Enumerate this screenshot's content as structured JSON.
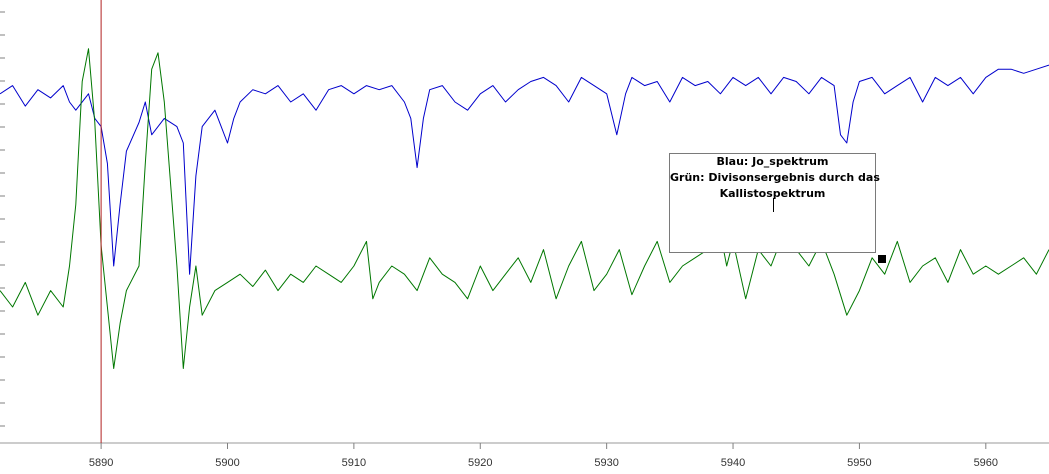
{
  "chart_data": {
    "type": "line",
    "x_ticks": [
      5890,
      5900,
      5910,
      5920,
      5930,
      5940,
      5950,
      5960
    ],
    "xlim": [
      5882,
      5965
    ],
    "ylim": [
      0,
      1
    ],
    "cursor_x": 5890,
    "series": [
      {
        "color": "#0000cc",
        "x": [
          5882,
          5883,
          5884,
          5885,
          5886,
          5887,
          5887.5,
          5888,
          5889,
          5889.5,
          5890,
          5890.5,
          5891,
          5891.5,
          5892,
          5893,
          5893.5,
          5894,
          5895,
          5896,
          5896.5,
          5897,
          5897.5,
          5898,
          5899,
          5900,
          5900.5,
          5901,
          5902,
          5903,
          5904,
          5905,
          5906,
          5907,
          5908,
          5909,
          5910,
          5911,
          5912,
          5913,
          5914,
          5914.5,
          5915,
          5915.5,
          5916,
          5917,
          5918,
          5919,
          5920,
          5921,
          5922,
          5923,
          5924,
          5925,
          5926,
          5927,
          5928,
          5929,
          5930,
          5930.8,
          5931.5,
          5932,
          5933,
          5934,
          5935,
          5936,
          5937,
          5938,
          5939,
          5940,
          5941,
          5942,
          5943,
          5944,
          5945,
          5946,
          5947,
          5948,
          5948.5,
          5949,
          5949.5,
          5950,
          5951,
          5952,
          5953,
          5954,
          5955,
          5956,
          5957,
          5958,
          5959,
          5960,
          5961,
          5962,
          5963,
          5964,
          5965
        ],
        "y": [
          0.82,
          0.84,
          0.79,
          0.83,
          0.81,
          0.84,
          0.8,
          0.78,
          0.82,
          0.76,
          0.74,
          0.65,
          0.4,
          0.55,
          0.68,
          0.75,
          0.8,
          0.72,
          0.76,
          0.74,
          0.7,
          0.38,
          0.62,
          0.74,
          0.78,
          0.7,
          0.76,
          0.8,
          0.83,
          0.82,
          0.84,
          0.8,
          0.82,
          0.78,
          0.83,
          0.84,
          0.82,
          0.84,
          0.83,
          0.84,
          0.8,
          0.76,
          0.64,
          0.76,
          0.83,
          0.84,
          0.8,
          0.78,
          0.82,
          0.84,
          0.8,
          0.83,
          0.85,
          0.86,
          0.84,
          0.8,
          0.86,
          0.84,
          0.82,
          0.72,
          0.82,
          0.86,
          0.84,
          0.85,
          0.8,
          0.86,
          0.84,
          0.85,
          0.82,
          0.86,
          0.84,
          0.86,
          0.82,
          0.86,
          0.85,
          0.82,
          0.86,
          0.84,
          0.72,
          0.7,
          0.8,
          0.85,
          0.86,
          0.82,
          0.84,
          0.86,
          0.8,
          0.86,
          0.84,
          0.86,
          0.82,
          0.86,
          0.88,
          0.88,
          0.87,
          0.88,
          0.89
        ]
      },
      {
        "color": "#007700",
        "x": [
          5882,
          5883,
          5884,
          5885,
          5886,
          5887,
          5887.5,
          5888,
          5888.5,
          5889,
          5889.5,
          5890,
          5890.5,
          5891,
          5891.5,
          5892,
          5893,
          5893.5,
          5894,
          5894.5,
          5895,
          5896,
          5896.5,
          5897,
          5897.5,
          5898,
          5899,
          5900,
          5901,
          5902,
          5903,
          5904,
          5905,
          5906,
          5907,
          5908,
          5909,
          5910,
          5911,
          5911.5,
          5912,
          5913,
          5914,
          5915,
          5916,
          5917,
          5918,
          5919,
          5920,
          5921,
          5922,
          5923,
          5924,
          5925,
          5926,
          5927,
          5928,
          5929,
          5930,
          5931,
          5932,
          5933,
          5934,
          5935,
          5936,
          5937,
          5938,
          5939,
          5939.5,
          5940,
          5941,
          5942,
          5943,
          5944,
          5945,
          5946,
          5947,
          5948,
          5949,
          5950,
          5951,
          5952,
          5953,
          5954,
          5955,
          5956,
          5957,
          5958,
          5959,
          5960,
          5961,
          5962,
          5963,
          5964,
          5965
        ],
        "y": [
          0.34,
          0.3,
          0.36,
          0.28,
          0.34,
          0.3,
          0.4,
          0.55,
          0.85,
          0.93,
          0.75,
          0.45,
          0.3,
          0.15,
          0.26,
          0.34,
          0.4,
          0.65,
          0.88,
          0.92,
          0.8,
          0.4,
          0.15,
          0.3,
          0.4,
          0.28,
          0.34,
          0.36,
          0.38,
          0.35,
          0.39,
          0.34,
          0.38,
          0.36,
          0.4,
          0.38,
          0.36,
          0.4,
          0.46,
          0.32,
          0.36,
          0.4,
          0.38,
          0.34,
          0.42,
          0.38,
          0.36,
          0.32,
          0.4,
          0.34,
          0.38,
          0.42,
          0.36,
          0.44,
          0.32,
          0.4,
          0.46,
          0.34,
          0.38,
          0.44,
          0.33,
          0.4,
          0.46,
          0.36,
          0.4,
          0.42,
          0.44,
          0.48,
          0.4,
          0.46,
          0.32,
          0.44,
          0.4,
          0.48,
          0.44,
          0.4,
          0.46,
          0.38,
          0.28,
          0.34,
          0.42,
          0.38,
          0.46,
          0.36,
          0.4,
          0.42,
          0.36,
          0.44,
          0.38,
          0.4,
          0.38,
          0.4,
          0.42,
          0.38,
          0.44
        ]
      }
    ],
    "annotation": {
      "line1": "Blau: Jo_spektrum",
      "line2": "Grün: Divisonsergebnis durch das",
      "line3": "Kallistospektrum"
    }
  },
  "colors": {
    "blue_series": "#0000cc",
    "green_series": "#007700",
    "cursor": "#b22222",
    "axis": "#808080"
  }
}
